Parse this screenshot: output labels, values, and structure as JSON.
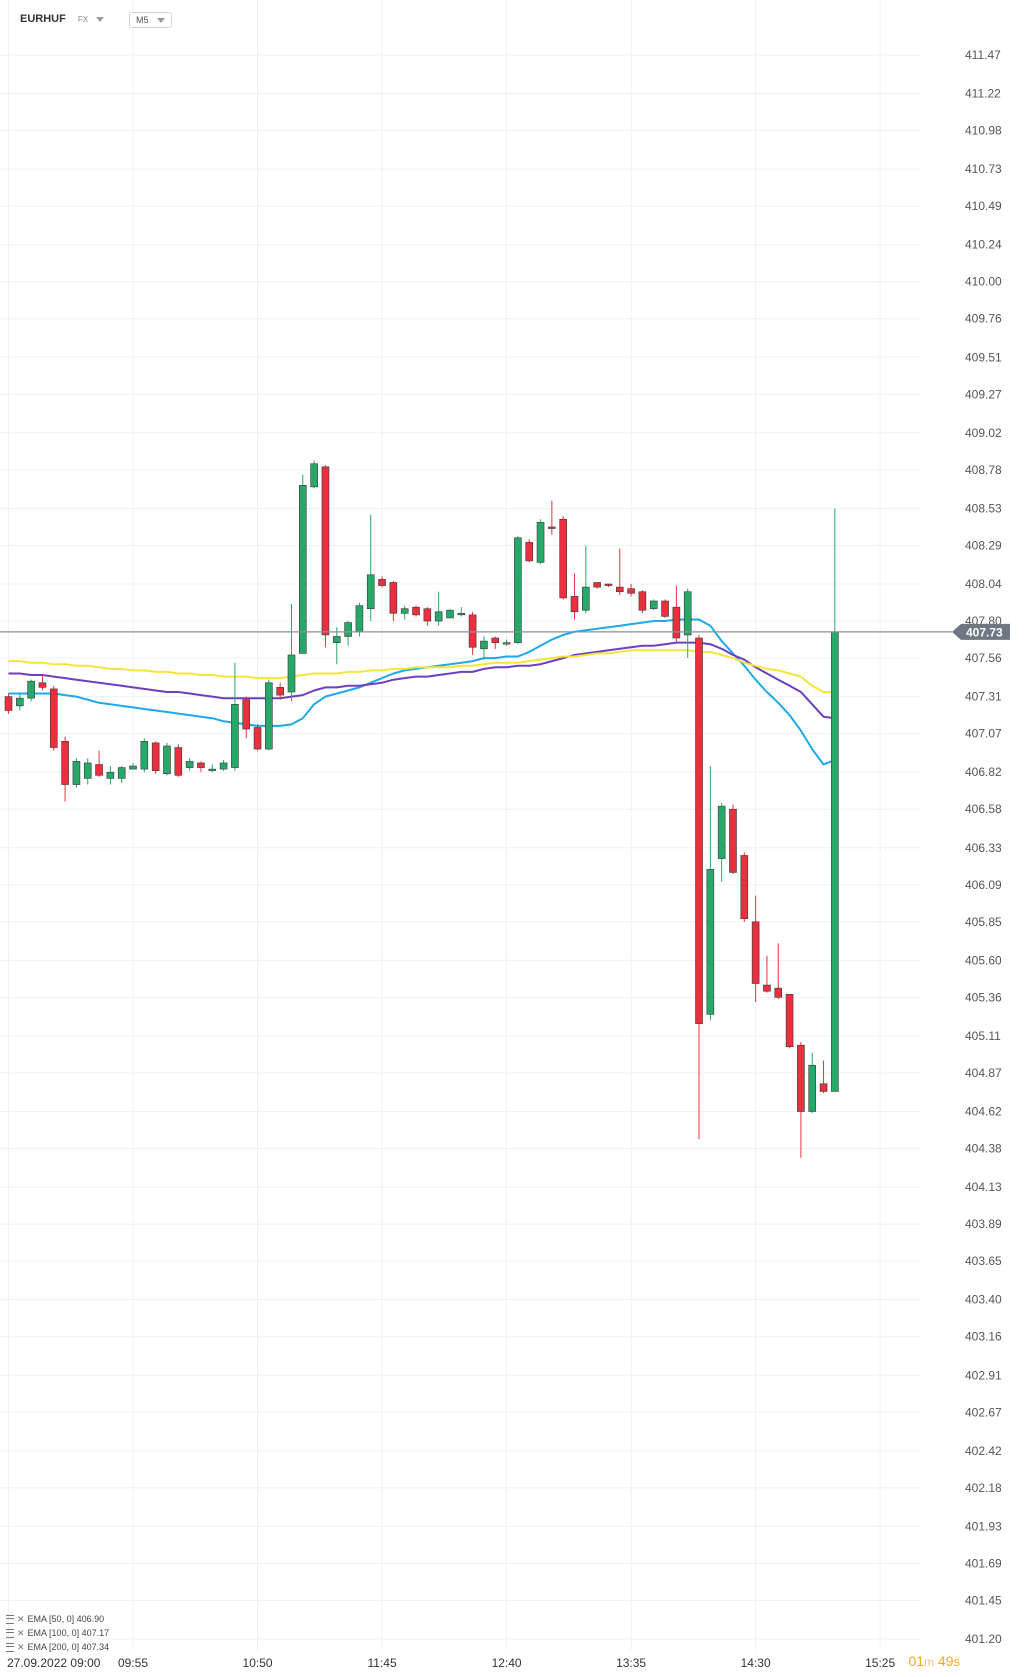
{
  "header": {
    "symbol": "EURHUF",
    "market": "FX",
    "timeframe": "M5"
  },
  "chart_data": {
    "type": "candlestick",
    "y_ticks": [
      "411.47",
      "411.22",
      "410.98",
      "410.73",
      "410.49",
      "410.24",
      "410.00",
      "409.76",
      "409.51",
      "409.27",
      "409.02",
      "408.78",
      "408.53",
      "408.29",
      "408.04",
      "407.80",
      "407.56",
      "407.31",
      "407.07",
      "406.82",
      "406.58",
      "406.33",
      "406.09",
      "405.85",
      "405.60",
      "405.36",
      "405.11",
      "404.87",
      "404.62",
      "404.38",
      "404.13",
      "403.89",
      "403.65",
      "403.40",
      "403.16",
      "402.91",
      "402.67",
      "402.42",
      "402.18",
      "401.93",
      "401.69",
      "401.45",
      "401.20"
    ],
    "ylim": [
      401.2,
      411.47
    ],
    "x_labels": [
      "27.09.2022  09:00",
      "09:55",
      "10:50",
      "11:45",
      "12:40",
      "13:35",
      "14:30",
      "15:25"
    ],
    "x_label_bar_index": [
      0,
      11,
      22,
      33,
      44,
      55,
      66,
      77
    ],
    "current_price": "407.73",
    "current_price_value": 407.73,
    "candles": [
      [
        407.31,
        407.22,
        407.33,
        407.2
      ],
      [
        407.25,
        407.3,
        407.33,
        407.22
      ],
      [
        407.3,
        407.41,
        407.42,
        407.28
      ],
      [
        407.4,
        407.37,
        407.45,
        407.35
      ],
      [
        407.36,
        406.98,
        407.38,
        406.96
      ],
      [
        407.02,
        406.74,
        407.05,
        406.63
      ],
      [
        406.74,
        406.89,
        406.91,
        406.72
      ],
      [
        406.78,
        406.88,
        406.91,
        406.74
      ],
      [
        406.87,
        406.8,
        406.96,
        406.79
      ],
      [
        406.78,
        406.82,
        406.86,
        406.74
      ],
      [
        406.78,
        406.85,
        406.86,
        406.75
      ],
      [
        406.84,
        406.86,
        406.88,
        406.84
      ],
      [
        406.84,
        407.02,
        407.04,
        406.82
      ],
      [
        407.01,
        406.83,
        407.02,
        406.81
      ],
      [
        406.81,
        406.99,
        407.01,
        406.8
      ],
      [
        406.98,
        406.8,
        407.0,
        406.79
      ],
      [
        406.85,
        406.89,
        406.91,
        406.83
      ],
      [
        406.88,
        406.85,
        406.89,
        406.82
      ],
      [
        406.84,
        406.84,
        406.87,
        406.82
      ],
      [
        406.84,
        406.88,
        406.9,
        406.83
      ],
      [
        406.85,
        407.26,
        407.53,
        406.83
      ],
      [
        407.29,
        407.1,
        407.31,
        407.04
      ],
      [
        407.11,
        406.97,
        407.13,
        406.96
      ],
      [
        406.97,
        407.4,
        407.42,
        406.96
      ],
      [
        407.37,
        407.32,
        407.4,
        407.29
      ],
      [
        407.34,
        407.58,
        407.91,
        407.28
      ],
      [
        407.59,
        408.68,
        408.75,
        407.59
      ],
      [
        408.67,
        408.82,
        408.84,
        408.66
      ],
      [
        408.8,
        407.71,
        408.81,
        407.63
      ],
      [
        407.66,
        407.7,
        407.76,
        407.52
      ],
      [
        407.7,
        407.79,
        407.8,
        407.64
      ],
      [
        407.73,
        407.9,
        407.92,
        407.7
      ],
      [
        407.88,
        408.1,
        408.49,
        407.8
      ],
      [
        408.07,
        408.03,
        408.09,
        408.02
      ],
      [
        408.05,
        407.85,
        408.06,
        407.8
      ],
      [
        407.85,
        407.88,
        407.9,
        407.81
      ],
      [
        407.89,
        407.84,
        407.9,
        407.83
      ],
      [
        407.88,
        407.8,
        407.89,
        407.77
      ],
      [
        407.8,
        407.86,
        407.99,
        407.77
      ],
      [
        407.82,
        407.87,
        407.88,
        407.82
      ],
      [
        407.85,
        407.85,
        407.89,
        407.83
      ],
      [
        407.84,
        407.63,
        407.86,
        407.58
      ],
      [
        407.62,
        407.67,
        407.7,
        407.55
      ],
      [
        407.69,
        407.66,
        407.7,
        407.62
      ],
      [
        407.66,
        407.66,
        407.68,
        407.64
      ],
      [
        407.66,
        408.34,
        408.35,
        407.65
      ],
      [
        408.31,
        408.19,
        408.33,
        408.18
      ],
      [
        408.18,
        408.44,
        408.46,
        408.17
      ],
      [
        408.41,
        408.4,
        408.58,
        408.36
      ],
      [
        408.46,
        407.95,
        408.48,
        407.94
      ],
      [
        407.96,
        407.86,
        408.11,
        407.81
      ],
      [
        407.87,
        408.02,
        408.29,
        407.85
      ],
      [
        408.05,
        408.02,
        408.05,
        408.01
      ],
      [
        408.04,
        408.03,
        408.04,
        408.02
      ],
      [
        408.02,
        407.99,
        408.27,
        407.97
      ],
      [
        408.01,
        407.98,
        408.04,
        407.96
      ],
      [
        407.99,
        407.87,
        408.0,
        407.85
      ],
      [
        407.88,
        407.93,
        407.94,
        407.87
      ],
      [
        407.93,
        407.83,
        407.94,
        407.82
      ],
      [
        407.89,
        407.69,
        408.03,
        407.66
      ],
      [
        407.71,
        407.99,
        408.01,
        407.56
      ],
      [
        407.69,
        405.19,
        407.71,
        404.44
      ],
      [
        405.25,
        406.19,
        406.86,
        405.21
      ],
      [
        406.26,
        406.6,
        406.62,
        406.11
      ],
      [
        406.58,
        406.17,
        406.61,
        406.16
      ],
      [
        406.28,
        405.87,
        406.3,
        405.85
      ],
      [
        405.85,
        405.45,
        406.02,
        405.33
      ],
      [
        405.44,
        405.4,
        405.63,
        405.39
      ],
      [
        405.42,
        405.36,
        405.71,
        405.35
      ],
      [
        405.38,
        405.04,
        405.38,
        405.03
      ],
      [
        405.05,
        404.62,
        405.07,
        404.32
      ],
      [
        404.62,
        404.92,
        405.0,
        404.61
      ],
      [
        404.8,
        404.75,
        404.95,
        404.74
      ],
      [
        404.75,
        407.73,
        408.53,
        404.75
      ]
    ],
    "series": [
      {
        "name": "EMA [50, 0] 406.90",
        "color": "#1fa8ea",
        "values": [
          407.33,
          407.33,
          407.33,
          407.33,
          407.33,
          407.32,
          407.31,
          407.29,
          407.27,
          407.26,
          407.25,
          407.24,
          407.23,
          407.22,
          407.21,
          407.2,
          407.19,
          407.18,
          407.17,
          407.15,
          407.14,
          407.13,
          407.12,
          407.12,
          407.12,
          407.13,
          407.17,
          407.26,
          407.31,
          407.33,
          407.35,
          407.37,
          407.4,
          407.43,
          407.46,
          407.48,
          407.49,
          407.5,
          407.51,
          407.52,
          407.53,
          407.54,
          407.56,
          407.56,
          407.57,
          407.57,
          407.6,
          407.64,
          407.68,
          407.71,
          407.73,
          407.74,
          407.75,
          407.76,
          407.77,
          407.78,
          407.79,
          407.8,
          407.8,
          407.81,
          407.81,
          407.81,
          407.77,
          407.67,
          407.59,
          407.51,
          407.42,
          407.34,
          407.27,
          407.19,
          407.09,
          406.97,
          406.87,
          406.9
        ]
      },
      {
        "name": "EMA [100, 0] 407.17",
        "color": "#6d3fbf",
        "values": [
          407.46,
          407.46,
          407.45,
          407.45,
          407.44,
          407.43,
          407.42,
          407.41,
          407.4,
          407.39,
          407.38,
          407.37,
          407.36,
          407.35,
          407.34,
          407.34,
          407.33,
          407.32,
          407.31,
          407.3,
          407.3,
          407.3,
          407.3,
          407.3,
          407.3,
          407.31,
          407.32,
          407.35,
          407.37,
          407.37,
          407.38,
          407.38,
          407.39,
          407.4,
          407.42,
          407.43,
          407.44,
          407.44,
          407.45,
          407.46,
          407.47,
          407.47,
          407.49,
          407.5,
          407.5,
          407.51,
          407.51,
          407.52,
          407.54,
          407.56,
          407.58,
          407.59,
          407.6,
          407.61,
          407.62,
          407.63,
          407.64,
          407.64,
          407.65,
          407.66,
          407.66,
          407.66,
          407.65,
          407.62,
          407.58,
          407.55,
          407.5,
          407.46,
          407.42,
          407.38,
          407.34,
          407.26,
          407.18,
          407.17
        ]
      },
      {
        "name": "EMA [200, 0] 407.34",
        "color": "#f5e43a",
        "values": [
          407.54,
          407.54,
          407.53,
          407.53,
          407.52,
          407.52,
          407.51,
          407.51,
          407.5,
          407.49,
          407.49,
          407.48,
          407.48,
          407.47,
          407.47,
          407.46,
          407.46,
          407.45,
          407.45,
          407.44,
          407.44,
          407.44,
          407.43,
          407.43,
          407.43,
          407.44,
          407.45,
          407.46,
          407.46,
          407.46,
          407.47,
          407.47,
          407.48,
          407.48,
          407.49,
          407.49,
          407.5,
          407.5,
          407.5,
          407.5,
          407.51,
          407.51,
          407.52,
          407.53,
          407.53,
          407.53,
          407.54,
          407.55,
          407.56,
          407.57,
          407.57,
          407.58,
          407.59,
          407.59,
          407.6,
          407.61,
          407.61,
          407.61,
          407.61,
          407.61,
          407.61,
          407.6,
          407.6,
          407.58,
          407.56,
          407.53,
          407.51,
          407.49,
          407.48,
          407.46,
          407.44,
          407.38,
          407.34,
          407.34
        ]
      }
    ],
    "up_color": "#27a86a",
    "down_color": "#e8303e",
    "grid": true
  },
  "timer": {
    "minutes": "01",
    "m_unit": "m",
    "seconds": "49",
    "s_unit": "s"
  }
}
